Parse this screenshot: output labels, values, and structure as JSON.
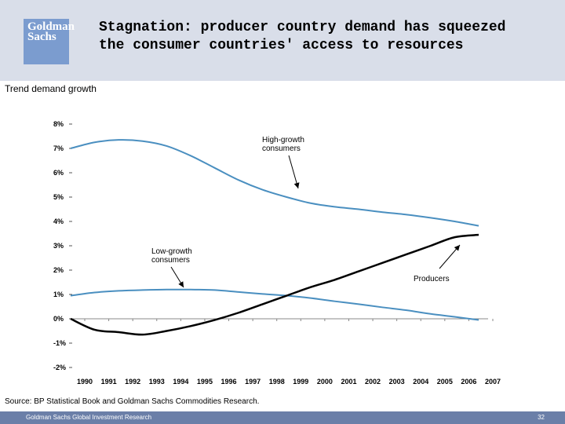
{
  "header": {
    "logo_line1": "Goldman",
    "logo_line2": "Sachs",
    "title": "Stagnation: producer country demand has squeezed the consumer countries' access to resources"
  },
  "subtitle": "Trend demand growth",
  "source": "Source: BP Statistical Book and Goldman Sachs Commodities Research.",
  "footer": {
    "text": "Goldman Sachs Global Investment Research",
    "page": "32"
  },
  "colors": {
    "header_bg": "#d9dee9",
    "logo_bg": "#7b9ccf",
    "footer_bg": "#6b7fa8",
    "consumer_line": "#4a8fc0",
    "producer_line": "#000000"
  },
  "chart_data": {
    "type": "line",
    "title": "Trend demand growth",
    "xlabel": "",
    "ylabel": "",
    "ylim": [
      -2,
      8
    ],
    "xlim": [
      1990,
      2007
    ],
    "y_ticks": [
      "8%",
      "7%",
      "6%",
      "5%",
      "4%",
      "3%",
      "2%",
      "1%",
      "0%",
      "-1%",
      "-2%"
    ],
    "y_tick_values": [
      8,
      7,
      6,
      5,
      4,
      3,
      2,
      1,
      0,
      -1,
      -2
    ],
    "categories": [
      "1990",
      "1991",
      "1992",
      "1993",
      "1994",
      "1995",
      "1996",
      "1997",
      "1998",
      "1999",
      "2000",
      "2001",
      "2002",
      "2003",
      "2004",
      "2005",
      "2006",
      "2007"
    ],
    "series": [
      {
        "name": "High-growth consumers",
        "values": [
          7.0,
          7.25,
          7.35,
          7.3,
          7.1,
          6.7,
          6.2,
          5.7,
          5.3,
          5.0,
          4.75,
          4.6,
          4.5,
          4.38,
          4.28,
          4.15,
          4.0,
          3.82
        ]
      },
      {
        "name": "Low-growth consumers",
        "values": [
          0.95,
          1.08,
          1.15,
          1.18,
          1.2,
          1.2,
          1.18,
          1.1,
          1.02,
          0.95,
          0.85,
          0.72,
          0.6,
          0.47,
          0.35,
          0.2,
          0.08,
          -0.05
        ]
      },
      {
        "name": "Producers",
        "values": [
          0.0,
          -0.45,
          -0.55,
          -0.65,
          -0.5,
          -0.3,
          -0.05,
          0.25,
          0.6,
          0.95,
          1.3,
          1.6,
          1.95,
          2.3,
          2.65,
          3.0,
          3.35,
          3.45
        ]
      }
    ],
    "annotations": [
      {
        "text_line1": "High-growth",
        "text_line2": "consumers",
        "series": "High-growth consumers"
      },
      {
        "text_line1": "Low-growth",
        "text_line2": "consumers",
        "series": "Low-growth consumers"
      },
      {
        "text_line1": "Producers",
        "text_line2": "",
        "series": "Producers"
      }
    ]
  }
}
